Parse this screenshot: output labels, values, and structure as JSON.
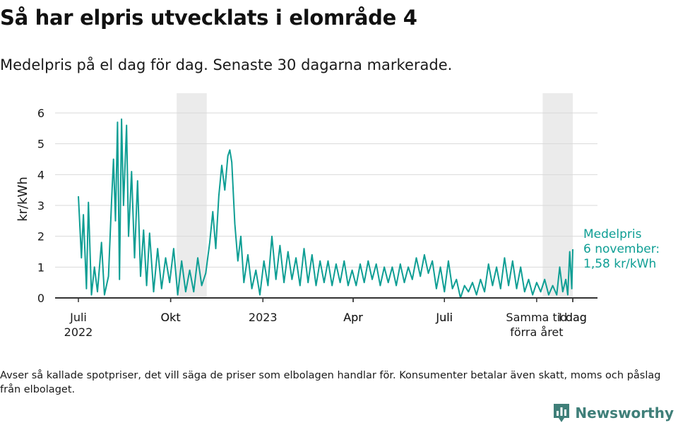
{
  "header": {
    "title": "Så har elpris utvecklats i elområde 4",
    "subtitle": "Medelpris på el dag för dag.  Senaste 30 dagarna markerade."
  },
  "footer": {
    "note": "Avser så kallade spotpriser, det vill säga de priser som elbolagen handlar för. Konsumenter betalar även skatt, moms och påslag från elbolaget.",
    "brand": "Newsworthy"
  },
  "colors": {
    "line": "#0e9e94",
    "highlight": "#ebebeb",
    "brand": "#3f7f79",
    "grid": "#d9d9d9",
    "text": "#1a1a1a"
  },
  "chart_data": {
    "type": "line",
    "ylabel": "kr/kWh",
    "ylim": [
      0,
      6
    ],
    "yticks": [
      0,
      1,
      2,
      3,
      4,
      5,
      6
    ],
    "xlim": [
      "2022-07-01",
      "2023-11-06"
    ],
    "x_ticks": [
      {
        "date": "2022-07-01",
        "lines": [
          "Juli",
          "2022"
        ]
      },
      {
        "date": "2022-10-01",
        "lines": [
          "Okt"
        ]
      },
      {
        "date": "2023-01-01",
        "lines": [
          "2023"
        ]
      },
      {
        "date": "2023-04-01",
        "lines": [
          "Apr"
        ]
      },
      {
        "date": "2023-07-01",
        "lines": [
          "Juli"
        ]
      },
      {
        "date": "2023-10-01",
        "lines": [
          "Samma tid",
          "förra året"
        ]
      },
      {
        "date": "2023-11-06",
        "lines": [
          "I dag"
        ]
      }
    ],
    "x_ticks_secondary": [
      {
        "date": "2022-10-01",
        "lines": [
          "Okt"
        ]
      },
      {
        "date": "2023-04-01",
        "lines": [
          "Apr"
        ]
      },
      {
        "date": "2023-07-01",
        "lines": [
          "Juli"
        ]
      },
      {
        "date": "2023-11-06",
        "lines": [
          "I dag"
        ]
      }
    ],
    "highlight_periods": [
      {
        "start": "2022-10-07",
        "end": "2022-11-06"
      },
      {
        "start": "2023-10-07",
        "end": "2023-11-06"
      }
    ],
    "annotation": {
      "lines": [
        "Medelpris",
        "6 november:",
        "1,58 kr/kWh"
      ],
      "date": "2023-11-06",
      "value": 1.58
    },
    "series": [
      {
        "values": [
          {
            "x": "2022-07-01",
            "y": 3.3
          },
          {
            "x": "2022-07-04",
            "y": 1.3
          },
          {
            "x": "2022-07-06",
            "y": 2.7
          },
          {
            "x": "2022-07-09",
            "y": 0.3
          },
          {
            "x": "2022-07-11",
            "y": 3.1
          },
          {
            "x": "2022-07-14",
            "y": 0.1
          },
          {
            "x": "2022-07-17",
            "y": 1.0
          },
          {
            "x": "2022-07-20",
            "y": 0.2
          },
          {
            "x": "2022-07-24",
            "y": 1.8
          },
          {
            "x": "2022-07-27",
            "y": 0.1
          },
          {
            "x": "2022-07-31",
            "y": 0.7
          },
          {
            "x": "2022-08-03",
            "y": 3.1
          },
          {
            "x": "2022-08-05",
            "y": 4.5
          },
          {
            "x": "2022-08-07",
            "y": 2.5
          },
          {
            "x": "2022-08-09",
            "y": 5.7
          },
          {
            "x": "2022-08-11",
            "y": 0.6
          },
          {
            "x": "2022-08-13",
            "y": 5.8
          },
          {
            "x": "2022-08-15",
            "y": 3.0
          },
          {
            "x": "2022-08-18",
            "y": 5.6
          },
          {
            "x": "2022-08-20",
            "y": 2.0
          },
          {
            "x": "2022-08-23",
            "y": 4.1
          },
          {
            "x": "2022-08-26",
            "y": 1.3
          },
          {
            "x": "2022-08-29",
            "y": 3.8
          },
          {
            "x": "2022-09-01",
            "y": 0.7
          },
          {
            "x": "2022-09-04",
            "y": 2.2
          },
          {
            "x": "2022-09-07",
            "y": 0.4
          },
          {
            "x": "2022-09-10",
            "y": 2.1
          },
          {
            "x": "2022-09-14",
            "y": 0.2
          },
          {
            "x": "2022-09-18",
            "y": 1.6
          },
          {
            "x": "2022-09-22",
            "y": 0.3
          },
          {
            "x": "2022-09-26",
            "y": 1.3
          },
          {
            "x": "2022-09-30",
            "y": 0.5
          },
          {
            "x": "2022-10-04",
            "y": 1.6
          },
          {
            "x": "2022-10-08",
            "y": 0.1
          },
          {
            "x": "2022-10-12",
            "y": 1.2
          },
          {
            "x": "2022-10-16",
            "y": 0.2
          },
          {
            "x": "2022-10-20",
            "y": 0.9
          },
          {
            "x": "2022-10-24",
            "y": 0.2
          },
          {
            "x": "2022-10-28",
            "y": 1.3
          },
          {
            "x": "2022-11-01",
            "y": 0.4
          },
          {
            "x": "2022-11-05",
            "y": 0.8
          },
          {
            "x": "2022-11-09",
            "y": 1.8
          },
          {
            "x": "2022-11-12",
            "y": 2.8
          },
          {
            "x": "2022-11-15",
            "y": 1.6
          },
          {
            "x": "2022-11-18",
            "y": 3.3
          },
          {
            "x": "2022-11-21",
            "y": 4.3
          },
          {
            "x": "2022-11-24",
            "y": 3.5
          },
          {
            "x": "2022-11-27",
            "y": 4.6
          },
          {
            "x": "2022-11-29",
            "y": 4.8
          },
          {
            "x": "2022-12-01",
            "y": 4.4
          },
          {
            "x": "2022-12-04",
            "y": 2.4
          },
          {
            "x": "2022-12-07",
            "y": 1.2
          },
          {
            "x": "2022-12-10",
            "y": 2.0
          },
          {
            "x": "2022-12-13",
            "y": 0.5
          },
          {
            "x": "2022-12-17",
            "y": 1.4
          },
          {
            "x": "2022-12-21",
            "y": 0.3
          },
          {
            "x": "2022-12-25",
            "y": 0.9
          },
          {
            "x": "2022-12-29",
            "y": 0.1
          },
          {
            "x": "2023-01-02",
            "y": 1.2
          },
          {
            "x": "2023-01-06",
            "y": 0.4
          },
          {
            "x": "2023-01-10",
            "y": 2.0
          },
          {
            "x": "2023-01-14",
            "y": 0.6
          },
          {
            "x": "2023-01-18",
            "y": 1.7
          },
          {
            "x": "2023-01-22",
            "y": 0.5
          },
          {
            "x": "2023-01-26",
            "y": 1.5
          },
          {
            "x": "2023-01-30",
            "y": 0.6
          },
          {
            "x": "2023-02-03",
            "y": 1.3
          },
          {
            "x": "2023-02-07",
            "y": 0.4
          },
          {
            "x": "2023-02-11",
            "y": 1.6
          },
          {
            "x": "2023-02-15",
            "y": 0.5
          },
          {
            "x": "2023-02-19",
            "y": 1.4
          },
          {
            "x": "2023-02-23",
            "y": 0.4
          },
          {
            "x": "2023-02-27",
            "y": 1.2
          },
          {
            "x": "2023-03-03",
            "y": 0.5
          },
          {
            "x": "2023-03-07",
            "y": 1.2
          },
          {
            "x": "2023-03-11",
            "y": 0.4
          },
          {
            "x": "2023-03-15",
            "y": 1.1
          },
          {
            "x": "2023-03-19",
            "y": 0.5
          },
          {
            "x": "2023-03-23",
            "y": 1.2
          },
          {
            "x": "2023-03-27",
            "y": 0.4
          },
          {
            "x": "2023-03-31",
            "y": 0.9
          },
          {
            "x": "2023-04-04",
            "y": 0.4
          },
          {
            "x": "2023-04-08",
            "y": 1.1
          },
          {
            "x": "2023-04-12",
            "y": 0.5
          },
          {
            "x": "2023-04-16",
            "y": 1.2
          },
          {
            "x": "2023-04-20",
            "y": 0.6
          },
          {
            "x": "2023-04-24",
            "y": 1.1
          },
          {
            "x": "2023-04-28",
            "y": 0.4
          },
          {
            "x": "2023-05-02",
            "y": 1.0
          },
          {
            "x": "2023-05-06",
            "y": 0.5
          },
          {
            "x": "2023-05-10",
            "y": 1.0
          },
          {
            "x": "2023-05-14",
            "y": 0.4
          },
          {
            "x": "2023-05-18",
            "y": 1.1
          },
          {
            "x": "2023-05-22",
            "y": 0.5
          },
          {
            "x": "2023-05-26",
            "y": 1.0
          },
          {
            "x": "2023-05-30",
            "y": 0.6
          },
          {
            "x": "2023-06-03",
            "y": 1.3
          },
          {
            "x": "2023-06-07",
            "y": 0.7
          },
          {
            "x": "2023-06-11",
            "y": 1.4
          },
          {
            "x": "2023-06-15",
            "y": 0.8
          },
          {
            "x": "2023-06-19",
            "y": 1.2
          },
          {
            "x": "2023-06-23",
            "y": 0.3
          },
          {
            "x": "2023-06-27",
            "y": 1.0
          },
          {
            "x": "2023-07-01",
            "y": 0.2
          },
          {
            "x": "2023-07-05",
            "y": 1.2
          },
          {
            "x": "2023-07-09",
            "y": 0.3
          },
          {
            "x": "2023-07-13",
            "y": 0.6
          },
          {
            "x": "2023-07-17",
            "y": 0.0
          },
          {
            "x": "2023-07-21",
            "y": 0.4
          },
          {
            "x": "2023-07-25",
            "y": 0.2
          },
          {
            "x": "2023-07-29",
            "y": 0.5
          },
          {
            "x": "2023-08-02",
            "y": 0.1
          },
          {
            "x": "2023-08-06",
            "y": 0.6
          },
          {
            "x": "2023-08-10",
            "y": 0.2
          },
          {
            "x": "2023-08-14",
            "y": 1.1
          },
          {
            "x": "2023-08-18",
            "y": 0.4
          },
          {
            "x": "2023-08-22",
            "y": 1.0
          },
          {
            "x": "2023-08-26",
            "y": 0.3
          },
          {
            "x": "2023-08-30",
            "y": 1.3
          },
          {
            "x": "2023-09-03",
            "y": 0.4
          },
          {
            "x": "2023-09-07",
            "y": 1.2
          },
          {
            "x": "2023-09-11",
            "y": 0.3
          },
          {
            "x": "2023-09-15",
            "y": 1.0
          },
          {
            "x": "2023-09-19",
            "y": 0.2
          },
          {
            "x": "2023-09-23",
            "y": 0.6
          },
          {
            "x": "2023-09-27",
            "y": 0.1
          },
          {
            "x": "2023-10-01",
            "y": 0.5
          },
          {
            "x": "2023-10-05",
            "y": 0.2
          },
          {
            "x": "2023-10-09",
            "y": 0.6
          },
          {
            "x": "2023-10-13",
            "y": 0.1
          },
          {
            "x": "2023-10-17",
            "y": 0.4
          },
          {
            "x": "2023-10-21",
            "y": 0.1
          },
          {
            "x": "2023-10-24",
            "y": 1.0
          },
          {
            "x": "2023-10-27",
            "y": 0.2
          },
          {
            "x": "2023-10-30",
            "y": 0.6
          },
          {
            "x": "2023-11-01",
            "y": 0.1
          },
          {
            "x": "2023-11-03",
            "y": 1.5
          },
          {
            "x": "2023-11-05",
            "y": 0.3
          },
          {
            "x": "2023-11-06",
            "y": 1.58
          }
        ]
      }
    ]
  }
}
